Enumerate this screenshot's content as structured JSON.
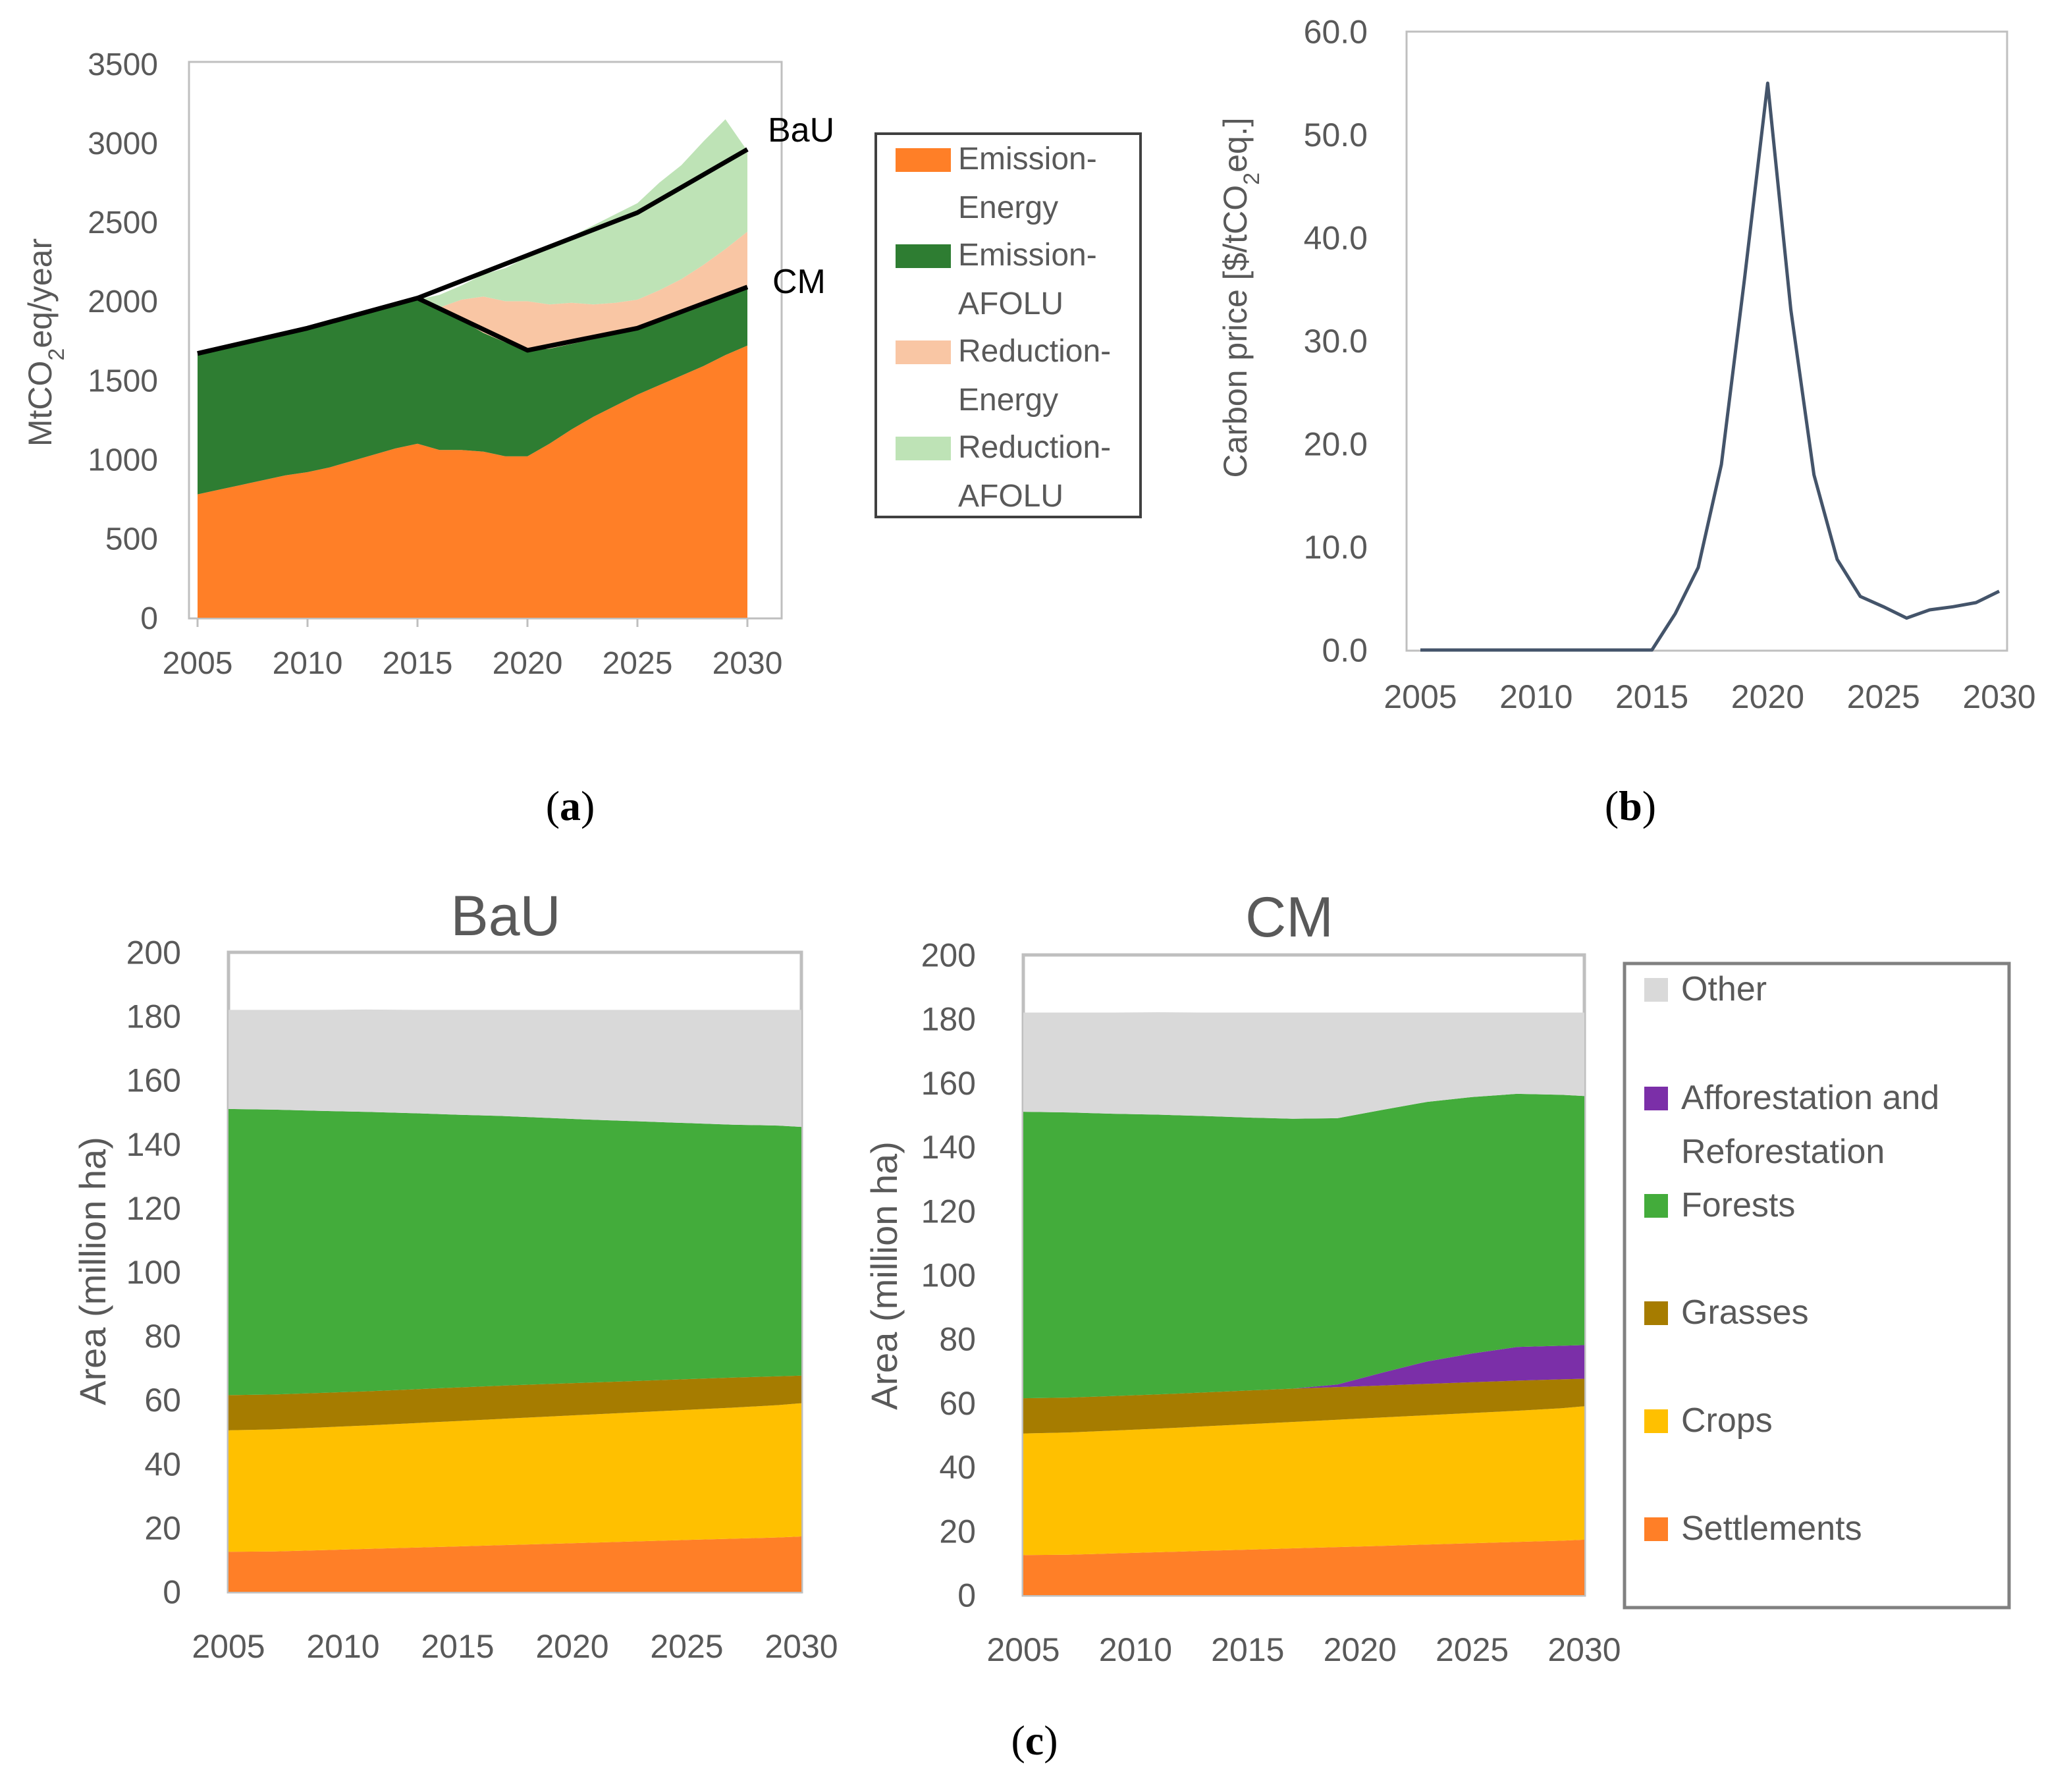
{
  "chart_data": [
    {
      "id": "a",
      "type": "area",
      "panel_label": {
        "open": "(",
        "letter": "a",
        "close": ")"
      },
      "ylabel": {
        "pre": "MtCO",
        "sub": "2",
        "post": "eq/year"
      },
      "ylim": [
        0,
        3500
      ],
      "yticks": [
        "0",
        "500",
        "1000",
        "1500",
        "2000",
        "2500",
        "3000",
        "3500"
      ],
      "xlim": [
        2005,
        2030
      ],
      "xticks": [
        "2005",
        "2010",
        "2015",
        "2020",
        "2025",
        "2030"
      ],
      "x": [
        2005,
        2006,
        2007,
        2008,
        2009,
        2010,
        2011,
        2012,
        2013,
        2014,
        2015,
        2016,
        2017,
        2018,
        2019,
        2020,
        2021,
        2022,
        2023,
        2024,
        2025,
        2026,
        2027,
        2028,
        2029,
        2030
      ],
      "series": [
        {
          "name": "Emission-Energy",
          "color": "#FF7F27",
          "values": [
            780,
            810,
            840,
            870,
            900,
            920,
            950,
            990,
            1030,
            1070,
            1100,
            1060,
            1060,
            1050,
            1020,
            1020,
            1100,
            1190,
            1270,
            1340,
            1410,
            1470,
            1530,
            1590,
            1660,
            1720
          ]
        },
        {
          "name": "Emission-AFOLU",
          "color": "#2E7D32",
          "values": [
            890,
            890,
            890,
            900,
            910,
            910,
            930,
            920,
            910,
            900,
            910,
            900,
            820,
            750,
            720,
            670,
            600,
            540,
            490,
            450,
            420,
            400,
            390,
            380,
            370,
            370
          ]
        },
        {
          "name": "Reduction-Energy",
          "color": "#F9C6A4",
          "values": [
            0,
            0,
            0,
            0,
            0,
            0,
            0,
            0,
            0,
            0,
            0,
            0,
            130,
            230,
            260,
            310,
            280,
            260,
            220,
            200,
            180,
            200,
            220,
            260,
            300,
            350
          ]
        },
        {
          "name": "Reduction-AFOLU",
          "color": "#BEE3B6",
          "values": [
            0,
            0,
            0,
            0,
            0,
            0,
            0,
            0,
            0,
            0,
            0,
            80,
            90,
            140,
            210,
            280,
            360,
            420,
            500,
            560,
            610,
            680,
            720,
            780,
            820,
            510
          ]
        }
      ],
      "lines": [
        {
          "name": "BaU",
          "color": "#000000",
          "x": [
            2005,
            2010,
            2015,
            2020,
            2025,
            2030
          ],
          "values": [
            1670,
            1830,
            2020,
            2290,
            2560,
            2960
          ]
        },
        {
          "name": "CM",
          "color": "#000000",
          "x": [
            2005,
            2010,
            2015,
            2020,
            2025,
            2030
          ],
          "values": [
            1670,
            1830,
            2020,
            1690,
            1830,
            2090
          ]
        }
      ],
      "annotations": [
        "BaU",
        "CM"
      ],
      "legend": [
        {
          "label1": "Emission-",
          "label2": "Energy",
          "color": "#FF7F27"
        },
        {
          "label1": "Emission-",
          "label2": "AFOLU",
          "color": "#2E7D32"
        },
        {
          "label1": "Reduction-",
          "label2": "Energy",
          "color": "#F9C6A4"
        },
        {
          "label1": "Reduction-",
          "label2": "AFOLU",
          "color": "#BEE3B6"
        }
      ],
      "legend_position": "right"
    },
    {
      "id": "b",
      "type": "line",
      "panel_label": {
        "open": "(",
        "letter": "b",
        "close": ")"
      },
      "ylabel": {
        "pre": "Carbon price [$/tCO",
        "sub": "2",
        "post": "eq.]"
      },
      "ylim": [
        0,
        60
      ],
      "yticks": [
        "0.0",
        "10.0",
        "20.0",
        "30.0",
        "40.0",
        "50.0",
        "60.0"
      ],
      "xlim": [
        2005,
        2030
      ],
      "xticks": [
        "2005",
        "2010",
        "2015",
        "2020",
        "2025",
        "2030"
      ],
      "series": [
        {
          "name": "Carbon price",
          "color": "#44546A",
          "x": [
            2005,
            2010,
            2015,
            2016,
            2017,
            2018,
            2019,
            2020,
            2021,
            2022,
            2023,
            2024,
            2025,
            2026,
            2027,
            2028,
            2029,
            2030
          ],
          "values": [
            0,
            0,
            0,
            3.5,
            8,
            18,
            36,
            55,
            33,
            17,
            8.8,
            5.2,
            4.2,
            3.1,
            3.9,
            4.2,
            4.6,
            5.7
          ]
        }
      ]
    },
    {
      "id": "c-bau",
      "type": "area",
      "title": "BaU",
      "ylabel": "Area (million ha)",
      "ylim": [
        0,
        200
      ],
      "yticks": [
        "0",
        "20",
        "40",
        "60",
        "80",
        "100",
        "120",
        "140",
        "160",
        "180",
        "200"
      ],
      "xlim": [
        2005,
        2030
      ],
      "xticks": [
        "2005",
        "2010",
        "2015",
        "2020",
        "2025",
        "2030"
      ],
      "x": [
        2005,
        2007,
        2009,
        2011,
        2013,
        2015,
        2017,
        2019,
        2021,
        2023,
        2025,
        2027,
        2029,
        2030
      ],
      "series": [
        {
          "name": "Settlements",
          "color": "#FF7F27",
          "values": [
            12.5,
            12.6,
            13,
            13.4,
            13.8,
            14.2,
            14.6,
            15,
            15.4,
            15.8,
            16.2,
            16.6,
            17,
            17.3
          ]
        },
        {
          "name": "Crops",
          "color": "#FFC000",
          "values": [
            38,
            38.2,
            38.4,
            38.6,
            38.9,
            39.2,
            39.5,
            39.8,
            40.1,
            40.4,
            40.7,
            41,
            41.4,
            41.7
          ]
        },
        {
          "name": "Grasses",
          "color": "#A67C00",
          "values": [
            11,
            10.9,
            10.8,
            10.7,
            10.6,
            10.5,
            10.4,
            10.2,
            10,
            9.8,
            9.6,
            9.4,
            9,
            8.6
          ]
        },
        {
          "name": "Afforestation and Reforestation",
          "color": "#7B2FA8",
          "values": [
            0,
            0,
            0,
            0,
            0,
            0,
            0,
            0,
            0,
            0,
            0,
            0,
            0,
            0
          ]
        },
        {
          "name": "Forests",
          "color": "#43AC3B",
          "values": [
            89.5,
            89.1,
            88.2,
            87.4,
            86.4,
            85.3,
            84.3,
            83.2,
            82.1,
            81.1,
            80.1,
            79.1,
            78.4,
            77.8
          ]
        },
        {
          "name": "Other",
          "color": "#D9D9D9",
          "values": [
            31,
            31.2,
            31.6,
            32,
            32.3,
            32.8,
            33.2,
            33.8,
            34.4,
            34.9,
            35.4,
            35.9,
            36.2,
            36.6
          ]
        }
      ]
    },
    {
      "id": "c-cm",
      "type": "area",
      "title": "CM",
      "ylabel": "Area (million ha)",
      "ylim": [
        0,
        200
      ],
      "yticks": [
        "0",
        "20",
        "40",
        "60",
        "80",
        "100",
        "120",
        "140",
        "160",
        "180",
        "200"
      ],
      "xlim": [
        2005,
        2030
      ],
      "xticks": [
        "2005",
        "2010",
        "2015",
        "2020",
        "2025",
        "2030"
      ],
      "x": [
        2005,
        2007,
        2009,
        2011,
        2013,
        2015,
        2017,
        2019,
        2021,
        2023,
        2025,
        2027,
        2029,
        2030
      ],
      "series": [
        {
          "name": "Settlements",
          "color": "#FF7F27",
          "values": [
            12.5,
            12.6,
            13,
            13.4,
            13.8,
            14.2,
            14.6,
            15,
            15.4,
            15.8,
            16.2,
            16.6,
            17,
            17.3
          ]
        },
        {
          "name": "Crops",
          "color": "#FFC000",
          "values": [
            38,
            38.2,
            38.4,
            38.6,
            38.9,
            39.2,
            39.5,
            39.8,
            40.1,
            40.4,
            40.7,
            41,
            41.4,
            41.7
          ]
        },
        {
          "name": "Grasses",
          "color": "#A67C00",
          "values": [
            11,
            10.9,
            10.8,
            10.7,
            10.6,
            10.5,
            10.4,
            10.2,
            10,
            9.8,
            9.6,
            9.4,
            9,
            8.6
          ]
        },
        {
          "name": "Afforestation and Reforestation",
          "color": "#7B2FA8",
          "values": [
            0,
            0,
            0,
            0,
            0,
            0,
            0,
            0.8,
            4,
            7,
            9,
            10.5,
            10.5,
            10.5
          ]
        },
        {
          "name": "Forests",
          "color": "#43AC3B",
          "values": [
            89.5,
            89.1,
            88.2,
            87.4,
            86.4,
            85.3,
            84.3,
            83.2,
            82.1,
            81.1,
            80.1,
            79.1,
            78.4,
            77.8
          ]
        },
        {
          "name": "Other",
          "color": "#D9D9D9",
          "values": [
            31,
            31.2,
            31.6,
            32,
            32.3,
            32.8,
            33.2,
            33,
            30.4,
            27.9,
            26.4,
            25.4,
            25.7,
            26.1
          ]
        }
      ]
    }
  ],
  "legend_c": {
    "entries": [
      {
        "lines": [
          "Other"
        ],
        "color": "#D9D9D9"
      },
      {
        "lines": [
          "Afforestation and",
          "Reforestation"
        ],
        "color": "#7B2FA8"
      },
      {
        "lines": [
          "Forests"
        ],
        "color": "#43AC3B"
      },
      {
        "lines": [
          "Grasses"
        ],
        "color": "#A67C00"
      },
      {
        "lines": [
          "Crops"
        ],
        "color": "#FFC000"
      },
      {
        "lines": [
          "Settlements"
        ],
        "color": "#FF7F27"
      }
    ]
  },
  "panel_label_c": {
    "open": "(",
    "letter": "c",
    "close": ")"
  }
}
